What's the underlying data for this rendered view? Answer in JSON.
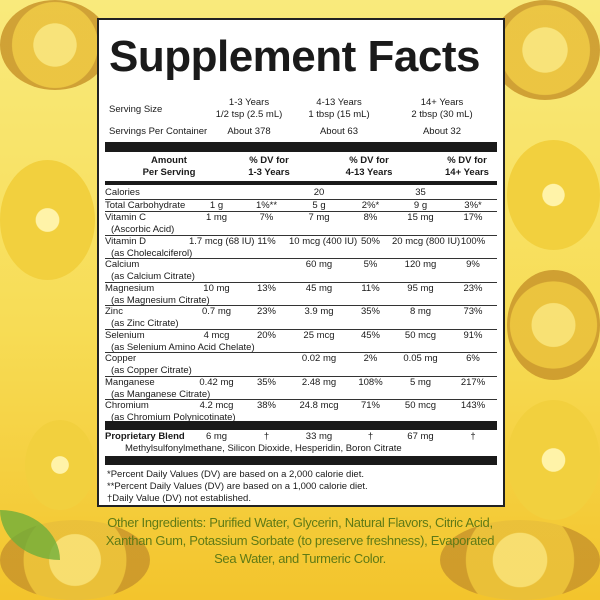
{
  "title": "Supplement Facts",
  "serving_size": {
    "label": "Serving Size",
    "cols": [
      {
        "age": "1-3 Years",
        "amount": "1/2 tsp (2.5 mL)"
      },
      {
        "age": "4-13 Years",
        "amount": "1 tbsp (15 mL)"
      },
      {
        "age": "14+ Years",
        "amount": "2 tbsp (30 mL)"
      }
    ]
  },
  "servings_per_container": {
    "label": "Servings Per Container",
    "values": [
      "About 378",
      "About 63",
      "About 32"
    ]
  },
  "headers": {
    "amount_l1": "Amount",
    "amount_l2": "Per Serving",
    "dv1_l1": "% DV for",
    "dv1_l2": "1-3 Years",
    "dv2_l1": "% DV for",
    "dv2_l2": "4-13 Years",
    "dv3_l1": "% DV for",
    "dv3_l2": "14+ Years"
  },
  "rows": [
    {
      "name": "Calories",
      "v": [
        "",
        "",
        "20",
        "",
        "35",
        ""
      ],
      "sub": ""
    },
    {
      "name": "Total Carbohydrate",
      "v": [
        "1 g",
        "1%**",
        "5 g",
        "2%*",
        "9 g",
        "3%*"
      ],
      "sub": ""
    },
    {
      "name": "Vitamin C",
      "v": [
        "1 mg",
        "7%",
        "7 mg",
        "8%",
        "15 mg",
        "17%"
      ],
      "sub": "(Ascorbic Acid)"
    },
    {
      "name": "Vitamin D",
      "v": [
        "1.7 mcg (68 IU)",
        "11%",
        "10 mcg (400 IU)",
        "50%",
        "20 mcg (800 IU)",
        "100%"
      ],
      "sub": "(as Cholecalciferol)"
    },
    {
      "name": "Calcium",
      "v": [
        "",
        "",
        "60 mg",
        "5%",
        "120 mg",
        "9%"
      ],
      "sub": "(as Calcium Citrate)"
    },
    {
      "name": "Magnesium",
      "v": [
        "10 mg",
        "13%",
        "45 mg",
        "11%",
        "95 mg",
        "23%"
      ],
      "sub": "(as Magnesium Citrate)"
    },
    {
      "name": "Zinc",
      "v": [
        "0.7 mg",
        "23%",
        "3.9 mg",
        "35%",
        "8 mg",
        "73%"
      ],
      "sub": "(as Zinc Citrate)"
    },
    {
      "name": "Selenium",
      "v": [
        "4 mcg",
        "20%",
        "25 mcg",
        "45%",
        "50 mcg",
        "91%"
      ],
      "sub": "(as Selenium Amino Acid Chelate)"
    },
    {
      "name": "Copper",
      "v": [
        "",
        "",
        "0.02 mg",
        "2%",
        "0.05 mg",
        "6%"
      ],
      "sub": "(as Copper Citrate)"
    },
    {
      "name": "Manganese",
      "v": [
        "0.42 mg",
        "35%",
        "2.48 mg",
        "108%",
        "5 mg",
        "217%"
      ],
      "sub": "(as Manganese Citrate)"
    },
    {
      "name": "Chromium",
      "v": [
        "4.2 mcg",
        "38%",
        "24.8 mcg",
        "71%",
        "50 mcg",
        "143%"
      ],
      "sub": "(as Chromium Polynicotinate)"
    }
  ],
  "blend": {
    "name": "Proprietary Blend",
    "v": [
      "6 mg",
      "†",
      "33 mg",
      "†",
      "67 mg",
      "†"
    ],
    "ingredients": "Methylsulfonylmethane, Silicon Dioxide, Hesperidin, Boron Citrate"
  },
  "footnotes": [
    "*Percent Daily Values (DV) are based on a 2,000 calorie diet.",
    "**Percent Daily Values (DV) are based on a 1,000 calorie diet.",
    "†Daily Value (DV) not established."
  ],
  "other_ingredients": "Other Ingredients: Purified Water, Glycerin, Natural Flavors, Citric Acid, Xanthan Gum, Potassium Sorbate (to preserve freshness), Evaporated Sea Water, and Turmeric Color.",
  "colors": {
    "background": "#f7dc55",
    "other_ingredients_text": "#5f7a16"
  }
}
